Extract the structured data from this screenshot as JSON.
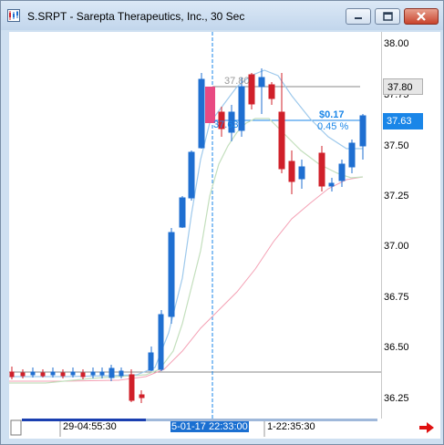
{
  "window": {
    "title": "S.SRPT - Sarepta Therapeutics, Inc., 30 Sec"
  },
  "y_axis": {
    "ticks": [
      "38.00",
      "37.75",
      "37.50",
      "37.25",
      "37.00",
      "36.75",
      "36.50",
      "36.25"
    ]
  },
  "price_tags": {
    "current": "37.63",
    "level": "37.80"
  },
  "annotations": {
    "line_high": "37.80",
    "line_low": "37.63",
    "change_amount": "$0.17",
    "change_percent": "0.45 %"
  },
  "x_axis": {
    "labels": [
      "29-04:55:30",
      "5-01-17 22:33:00",
      "1-22:35:30"
    ]
  },
  "colors": {
    "up": "#1f6fd1",
    "down": "#d0202a",
    "ma_fast": "#9ec9ec",
    "ma_mid": "#c3dfbd",
    "ma_slow": "#f4a0b4",
    "accent": "#1a86e8"
  },
  "icons": {
    "nav": "right-arrow-icon"
  }
}
